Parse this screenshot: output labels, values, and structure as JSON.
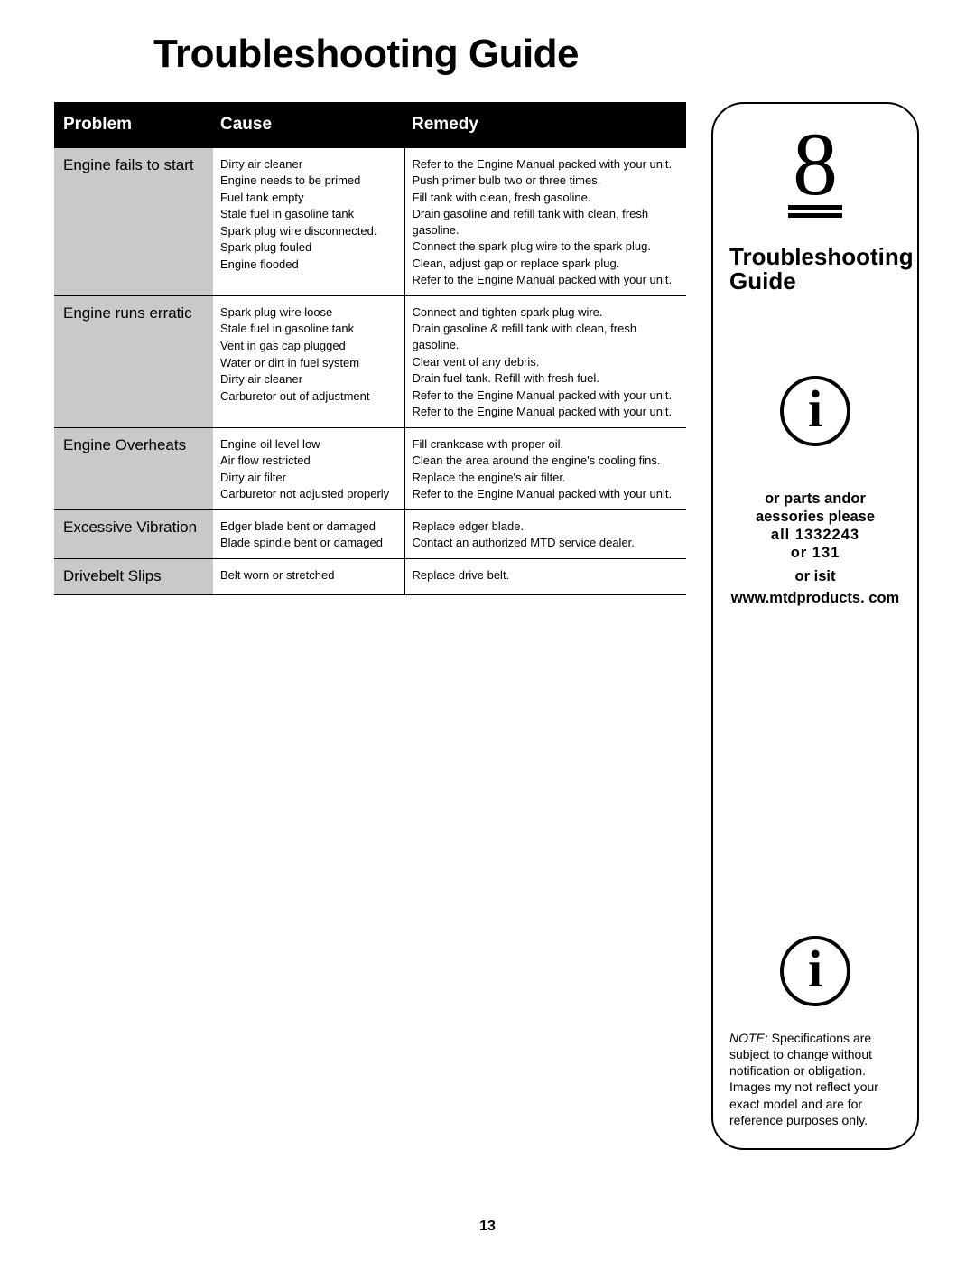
{
  "page": {
    "title": "Troubleshooting Guide",
    "number": "13"
  },
  "table": {
    "headers": {
      "problem": "Problem",
      "cause": "Cause",
      "remedy": "Remedy"
    },
    "sections": [
      {
        "problem": "Engine fails to start",
        "causes": [
          "Dirty air cleaner",
          "Engine needs to be primed",
          "Fuel tank empty",
          "Stale fuel in gasoline tank",
          "Spark plug wire disconnected.",
          "Spark plug fouled",
          "Engine flooded"
        ],
        "remedies": [
          "Refer to the Engine Manual packed with your unit.",
          "Push primer bulb two or three times.",
          "Fill tank with clean, fresh gasoline.",
          "Drain gasoline and refill tank with clean, fresh gasoline.",
          "Connect the spark plug wire to the spark plug.",
          "Clean, adjust gap or replace spark plug.",
          "Refer to the Engine Manual packed with your unit."
        ]
      },
      {
        "problem": "Engine runs erratic",
        "causes": [
          "Spark plug wire loose",
          "Stale fuel in gasoline tank",
          "Vent in gas cap plugged",
          "Water or dirt in fuel system",
          "Dirty air cleaner",
          "Carburetor out of adjustment"
        ],
        "remedies": [
          "Connect and tighten spark plug wire.",
          "Drain gasoline & refill tank with clean, fresh gasoline.",
          "Clear vent of any debris.",
          "Drain fuel tank. Refill with fresh fuel.",
          "Refer to the Engine Manual packed with your unit.",
          "Refer to the Engine Manual packed with your unit."
        ]
      },
      {
        "problem": "Engine Overheats",
        "causes": [
          "Engine oil level low",
          "Air flow restricted",
          "Dirty air filter",
          "Carburetor not adjusted properly"
        ],
        "remedies": [
          "Fill crankcase with proper oil.",
          "Clean the area around the engine's cooling fins.",
          "Replace the engine's air filter.",
          "Refer to the Engine Manual packed with your unit."
        ]
      },
      {
        "problem": "Excessive Vibration",
        "causes": [
          "Edger blade bent or damaged",
          "Blade spindle bent or damaged"
        ],
        "remedies": [
          "Replace edger blade.",
          "Contact an authorized MTD service dealer."
        ]
      },
      {
        "problem": "Drivebelt Slips",
        "causes": [
          "Belt worn or stretched"
        ],
        "remedies": [
          "Replace drive belt."
        ]
      }
    ]
  },
  "sidebar": {
    "chapter": "8",
    "title_line1": "Troubleshooting",
    "title_line2": "Guide",
    "info_glyph": "i",
    "help_l1": "or parts andor",
    "help_l2": "aessories please",
    "help_l3": "all 1332243",
    "help_l4": "or 131",
    "visit": "or isit",
    "url": "www.mtdproducts. com",
    "note_lead": "NOTE:",
    "note_body": " Specifications are subject to change without notification or obligation. Images my not reflect your exact model and are for reference purposes only."
  }
}
